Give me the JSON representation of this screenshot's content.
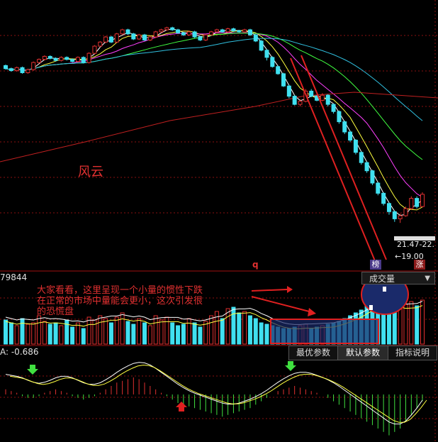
{
  "annotation": {
    "text_line1": "大家看看，这里呈现一个小量的惯性下跌",
    "text_line2": "在正常的市场中量能会更小，这次引发很",
    "text_line3": "的恐慌盘"
  },
  "main_label": "风云",
  "volume_panel": {
    "readout": "79844",
    "dropdown_label": "成交量"
  },
  "macd_panel": {
    "readout": "A: -0.686"
  },
  "tabs": {
    "best": "最优参数",
    "default": "默认参数",
    "explain": "指标说明"
  },
  "price_readouts": {
    "range": "21.47-22.",
    "low": "←19.00"
  },
  "badges": {
    "bang": "榜",
    "zhang": "涨",
    "q": "q"
  },
  "colors": {
    "up": "#e03030",
    "down": "#40e0f0",
    "ma5": "#ffffff",
    "ma10": "#ffff40",
    "ma20": "#ff40ff",
    "ma30": "#40ff40",
    "ma60": "#30c0e0",
    "ma120": "#c02020",
    "annotation": "#e03030"
  },
  "chart_data": {
    "type": "candlestick",
    "candles": [
      [
        80,
        74,
        82,
        72
      ],
      [
        74,
        70,
        76,
        68
      ],
      [
        70,
        76,
        78,
        68
      ],
      [
        76,
        66,
        78,
        64
      ],
      [
        66,
        72,
        74,
        64
      ],
      [
        72,
        86,
        88,
        70
      ],
      [
        86,
        92,
        94,
        84
      ],
      [
        92,
        98,
        100,
        90
      ],
      [
        98,
        94,
        100,
        92
      ],
      [
        94,
        90,
        96,
        88
      ],
      [
        90,
        96,
        98,
        88
      ],
      [
        96,
        92,
        98,
        90
      ],
      [
        92,
        88,
        94,
        86
      ],
      [
        88,
        96,
        98,
        86
      ],
      [
        96,
        86,
        98,
        84
      ],
      [
        86,
        104,
        106,
        84
      ],
      [
        104,
        118,
        120,
        102
      ],
      [
        118,
        126,
        128,
        116
      ],
      [
        126,
        136,
        138,
        124
      ],
      [
        136,
        126,
        138,
        124
      ],
      [
        126,
        142,
        144,
        124
      ],
      [
        142,
        150,
        152,
        140
      ],
      [
        150,
        142,
        152,
        140
      ],
      [
        142,
        132,
        144,
        130
      ],
      [
        132,
        140,
        142,
        130
      ],
      [
        140,
        130,
        142,
        128
      ],
      [
        130,
        136,
        138,
        128
      ],
      [
        136,
        146,
        148,
        134
      ],
      [
        146,
        150,
        152,
        144
      ],
      [
        150,
        154,
        156,
        148
      ],
      [
        154,
        150,
        156,
        148
      ],
      [
        150,
        144,
        152,
        142
      ],
      [
        144,
        140,
        146,
        138
      ],
      [
        140,
        146,
        148,
        138
      ],
      [
        146,
        136,
        148,
        134
      ],
      [
        136,
        130,
        138,
        128
      ],
      [
        130,
        140,
        142,
        128
      ],
      [
        140,
        146,
        148,
        138
      ],
      [
        146,
        150,
        152,
        144
      ],
      [
        150,
        146,
        152,
        144
      ],
      [
        146,
        152,
        154,
        144
      ],
      [
        152,
        148,
        154,
        146
      ],
      [
        148,
        146,
        150,
        144
      ],
      [
        146,
        150,
        152,
        144
      ],
      [
        150,
        140,
        152,
        138
      ],
      [
        140,
        128,
        142,
        126
      ],
      [
        128,
        110,
        130,
        108
      ],
      [
        110,
        96,
        112,
        90
      ],
      [
        96,
        78,
        98,
        76
      ],
      [
        78,
        64,
        80,
        62
      ],
      [
        64,
        40,
        66,
        38
      ],
      [
        40,
        20,
        42,
        16
      ],
      [
        20,
        4,
        22,
        2
      ],
      [
        4,
        10,
        14,
        0
      ],
      [
        10,
        30,
        34,
        8
      ],
      [
        30,
        20,
        34,
        18
      ],
      [
        20,
        12,
        22,
        10
      ],
      [
        12,
        22,
        26,
        10
      ],
      [
        22,
        4,
        24,
        0
      ],
      [
        4,
        -10,
        6,
        -14
      ],
      [
        -10,
        -30,
        -8,
        -34
      ],
      [
        -30,
        -50,
        -28,
        -54
      ],
      [
        -50,
        -66,
        -48,
        -70
      ],
      [
        -66,
        -90,
        -64,
        -94
      ],
      [
        -90,
        -110,
        -88,
        -114
      ],
      [
        -110,
        -126,
        -108,
        -130
      ],
      [
        -126,
        -150,
        -124,
        -154
      ],
      [
        -150,
        -170,
        -148,
        -174
      ],
      [
        -170,
        -190,
        -168,
        -194
      ],
      [
        -190,
        -206,
        -188,
        -212
      ],
      [
        -206,
        -220,
        -204,
        -226
      ],
      [
        -220,
        -214,
        -210,
        -228
      ],
      [
        -214,
        -200,
        -196,
        -216
      ],
      [
        -200,
        -180,
        -176,
        -202
      ],
      [
        -180,
        -196,
        -176,
        -200
      ],
      [
        -196,
        -172,
        -168,
        -198
      ]
    ],
    "volume": [
      34,
      30,
      26,
      36,
      28,
      30,
      40,
      32,
      28,
      30,
      26,
      34,
      24,
      30,
      22,
      38,
      34,
      40,
      36,
      30,
      38,
      44,
      32,
      28,
      36,
      30,
      26,
      40,
      34,
      38,
      30,
      26,
      28,
      36,
      30,
      24,
      32,
      40,
      46,
      36,
      50,
      52,
      44,
      46,
      40,
      36,
      30,
      28,
      26,
      24,
      22,
      22,
      24,
      26,
      28,
      22,
      24,
      26,
      28,
      30,
      32,
      36,
      40,
      44,
      48,
      54,
      60,
      64,
      58,
      52,
      46,
      50,
      56,
      60,
      54,
      62
    ],
    "macd": [
      3,
      2,
      1,
      -1,
      -2,
      -2,
      -1,
      1,
      2,
      3,
      2,
      1,
      -1,
      -2,
      -3,
      -2,
      -1,
      1,
      3,
      5,
      7,
      8,
      9,
      10,
      9,
      7,
      5,
      3,
      1,
      -1,
      -3,
      -5,
      -6,
      -7,
      -8,
      -9,
      -10,
      -11,
      -12,
      -13,
      -12,
      -11,
      -10,
      -9,
      -8,
      -6,
      -4,
      -2,
      0,
      2,
      3,
      4,
      5,
      4,
      3,
      2,
      1,
      0,
      -2,
      -4,
      -6,
      -8,
      -10,
      -12,
      -14,
      -16,
      -18,
      -20,
      -22,
      -24,
      -22,
      -20,
      -16,
      -12,
      -8,
      -4
    ]
  }
}
